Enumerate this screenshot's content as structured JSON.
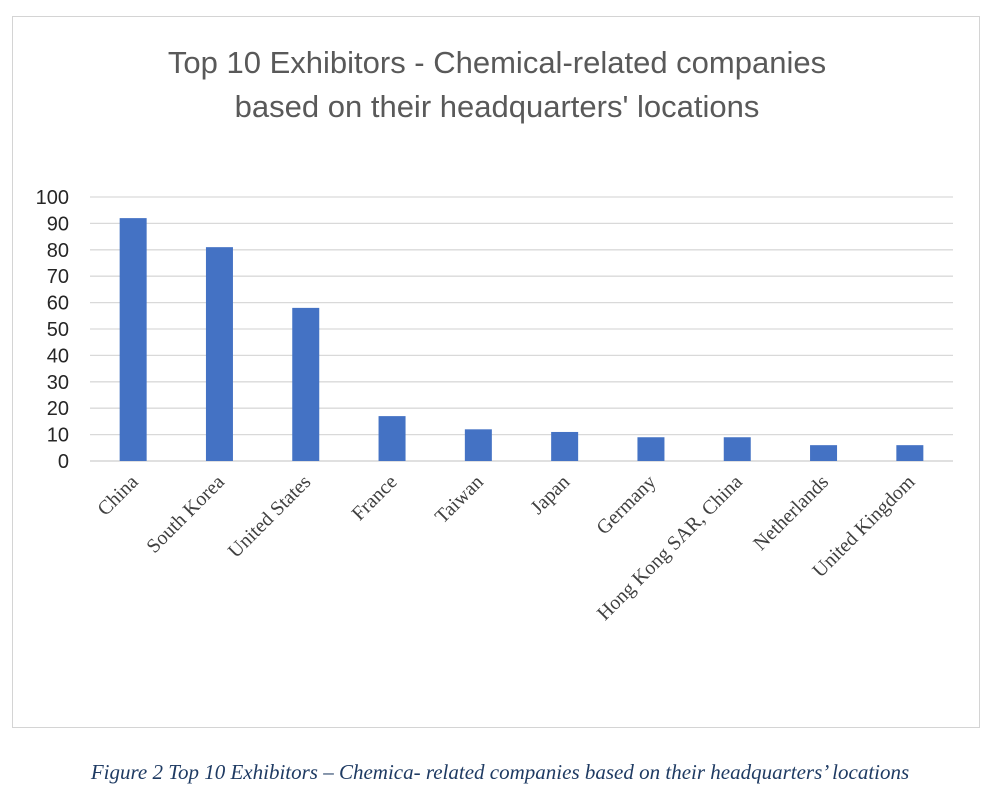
{
  "chart_data": {
    "type": "bar",
    "title_lines": [
      "Top 10 Exhibitors - Chemical-related companies",
      "based on their headquarters' locations"
    ],
    "categories": [
      "China",
      "South Korea",
      "United States",
      "France",
      "Taiwan",
      "Japan",
      "Germany",
      "Hong Kong SAR, China",
      "Netherlands",
      "United Kingdom"
    ],
    "values": [
      92,
      81,
      58,
      17,
      12,
      11,
      9,
      9,
      6,
      6
    ],
    "ylim": [
      0,
      100
    ],
    "yticks": [
      0,
      10,
      20,
      30,
      40,
      50,
      60,
      70,
      80,
      90,
      100
    ],
    "grid": true,
    "bar_color": "#4472c4",
    "grid_color": "#d9d9d9"
  },
  "caption": "Figure 2 Top 10 Exhibitors – Chemica- related companies based on their headquarters’ locations"
}
